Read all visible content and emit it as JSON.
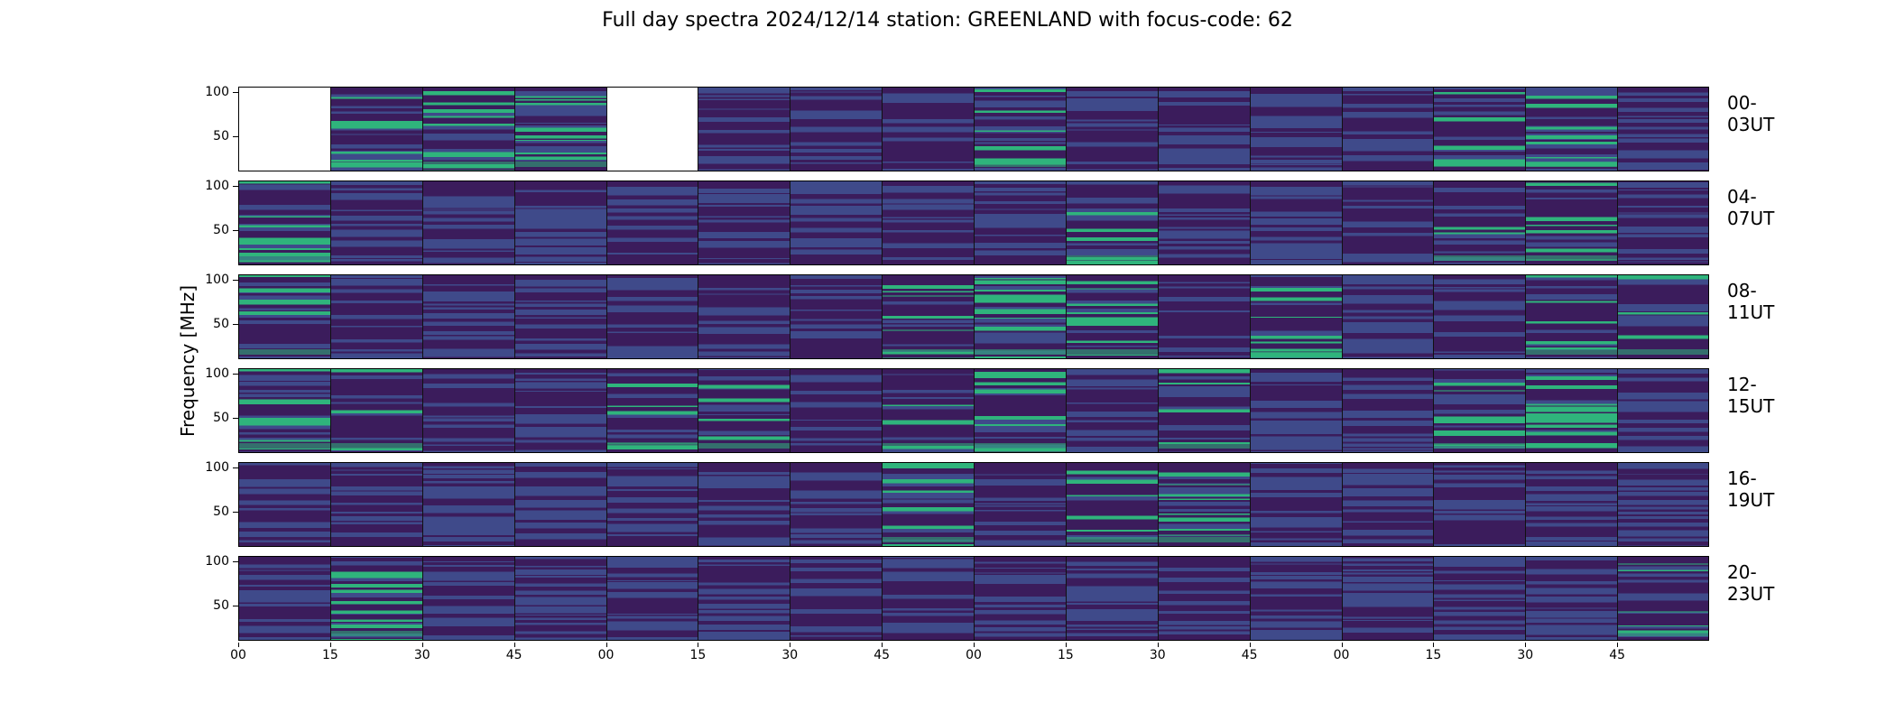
{
  "title": "Full day spectra 2024/12/14 station: GREENLAND with focus-code: 62",
  "ylabel": "Frequency [MHz]",
  "chart_data": {
    "type": "heatmap",
    "title": "Full day spectra 2024/12/14 station: GREENLAND with focus-code: 62",
    "ylabel": "Frequency [MHz]",
    "yticks": [
      "100",
      "50"
    ],
    "ylim": [
      10,
      105
    ],
    "xticks": [
      "00",
      "15",
      "30",
      "45",
      "00",
      "15",
      "30",
      "45",
      "00",
      "15",
      "30",
      "45",
      "00",
      "15",
      "30",
      "45"
    ],
    "colormap": "viridis",
    "rows": [
      {
        "label": "00-03UT",
        "empty_panels": [
          0,
          4
        ],
        "bright_panels": [
          1,
          2,
          3,
          8,
          13,
          14
        ]
      },
      {
        "label": "04-07UT",
        "empty_panels": [],
        "bright_panels": [
          0,
          9,
          13,
          14
        ]
      },
      {
        "label": "08-11UT",
        "empty_panels": [],
        "bright_panels": [
          0,
          7,
          8,
          9,
          11,
          14,
          15
        ]
      },
      {
        "label": "12-15UT",
        "empty_panels": [],
        "bright_panels": [
          0,
          1,
          4,
          5,
          7,
          8,
          10,
          13,
          14
        ]
      },
      {
        "label": "16-19UT",
        "empty_panels": [],
        "bright_panels": [
          7,
          9,
          10
        ]
      },
      {
        "label": "20-23UT",
        "empty_panels": [],
        "bright_panels": [
          1,
          15
        ]
      }
    ],
    "panels_per_row": 16,
    "colors": {
      "low": "#3b1c5c",
      "mid": "#3f4a8a",
      "high": "#2fb47c",
      "empty": "#ffffff"
    }
  }
}
